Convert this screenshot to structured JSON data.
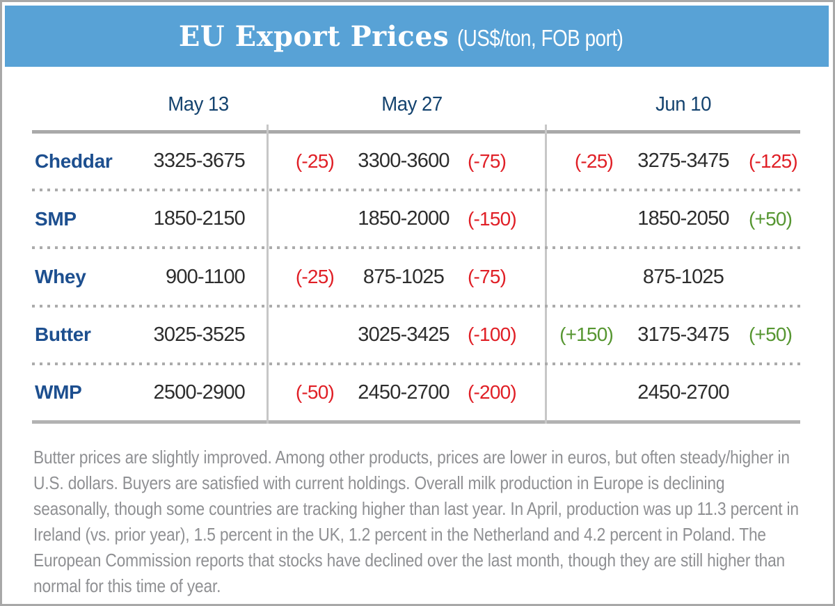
{
  "header": {
    "title": "EU Export Prices",
    "subtitle": "(US$/ton, FOB port)"
  },
  "columns": [
    "May 13",
    "May 27",
    "Jun 10"
  ],
  "table": {
    "rows": [
      {
        "product": "Cheddar",
        "may13": "3325-3675",
        "may27_change_pre": "(-25)",
        "may27": "3300-3600",
        "may27_change": "(-75)",
        "jun10_change_pre": "(-25)",
        "jun10": "3275-3475",
        "jun10_change": "(-125)"
      },
      {
        "product": "SMP",
        "may13": "1850-2150",
        "may27_change_pre": "",
        "may27": "1850-2000",
        "may27_change": "(-150)",
        "jun10_change_pre": "",
        "jun10": "1850-2050",
        "jun10_change": "(+50)"
      },
      {
        "product": "Whey",
        "may13": "900-1100",
        "may27_change_pre": "(-25)",
        "may27": "875-1025",
        "may27_change": "(-75)",
        "jun10_change_pre": "",
        "jun10": "875-1025",
        "jun10_change": ""
      },
      {
        "product": "Butter",
        "may13": "3025-3525",
        "may27_change_pre": "",
        "may27": "3025-3425",
        "may27_change": "(-100)",
        "jun10_change_pre": "(+150)",
        "jun10": "3175-3475",
        "jun10_change": "(+50)"
      },
      {
        "product": "WMP",
        "may13": "2500-2900",
        "may27_change_pre": "(-50)",
        "may27": "2450-2700",
        "may27_change": "(-200)",
        "jun10_change_pre": "",
        "jun10": "2450-2700",
        "jun10_change": ""
      }
    ]
  },
  "footer": {
    "text": "Butter prices are slightly improved. Among other products, prices are lower in euros, but often steady/higher in U.S. dollars. Buyers are satisfied with current holdings. Overall milk production in Europe is declining seasonally, though some countries are tracking higher than last year. In April, production was up 11.3 percent in Ireland (vs. prior year), 1.5 percent in the UK, 1.2 percent in the Netherland and 4.2 percent in Poland. The European Commission reports that stocks have declined over the last month, though they are still higher than normal for this time of year."
  },
  "colors": {
    "banner-blue": "#58a2d6",
    "navy-dark": "#14436f",
    "navy-product": "#1d4f8f",
    "value-ink": "#2d2d2d",
    "red": "#e01f26",
    "green": "#569631",
    "gray-text": "#8f9093"
  }
}
